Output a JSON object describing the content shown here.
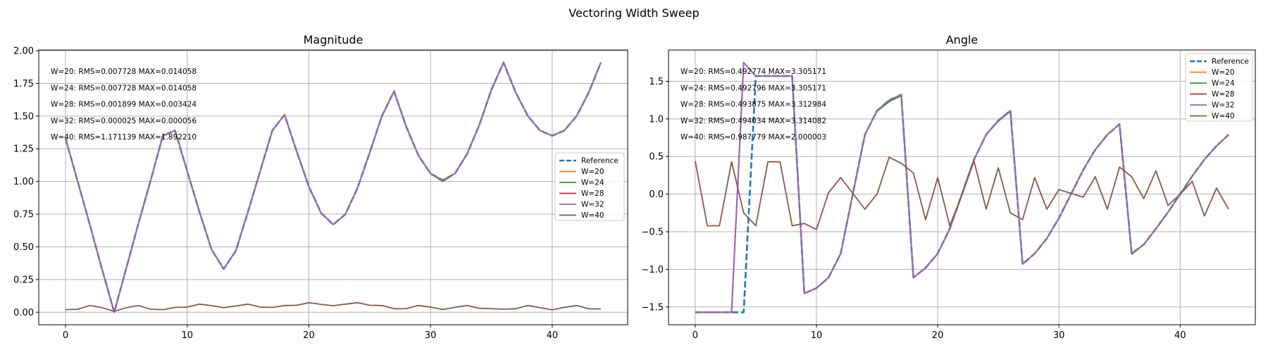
{
  "figure_title": "Vectoring Width Sweep",
  "colors": {
    "Reference": "#1f77b4",
    "W=20": "#ff7f0e",
    "W=24": "#2ca02c",
    "W=28": "#d62728",
    "W=32": "#9467bd",
    "W=40": "#8c564b"
  },
  "chart_data": [
    {
      "type": "line",
      "title": "Magnitude",
      "xlim": [
        -2.2,
        46.2
      ],
      "ylim": [
        -0.0955,
        2.0055
      ],
      "xticks": [
        "0",
        "10",
        "20",
        "30",
        "40"
      ],
      "yticks": [
        "0.00",
        "0.25",
        "0.50",
        "0.75",
        "1.00",
        "1.25",
        "1.50",
        "1.75",
        "2.00"
      ],
      "grid": true,
      "legend_position": "center-right",
      "x": [
        0,
        1,
        2,
        3,
        4,
        5,
        6,
        7,
        8,
        9,
        10,
        11,
        12,
        13,
        14,
        15,
        16,
        17,
        18,
        19,
        20,
        21,
        22,
        23,
        24,
        25,
        26,
        27,
        28,
        29,
        30,
        31,
        32,
        33,
        34,
        35,
        36,
        37,
        38,
        39,
        40,
        41,
        42,
        43,
        44
      ],
      "series": [
        {
          "name": "Reference",
          "style": "dashed",
          "values": [
            1.33,
            1.0,
            0.67,
            0.33,
            0.0,
            0.34,
            0.68,
            1.01,
            1.35,
            1.39,
            1.08,
            0.77,
            0.48,
            0.33,
            0.47,
            0.77,
            1.08,
            1.39,
            1.51,
            1.23,
            0.96,
            0.76,
            0.67,
            0.75,
            0.95,
            1.22,
            1.5,
            1.69,
            1.42,
            1.2,
            1.06,
            1.01,
            1.06,
            1.21,
            1.43,
            1.7,
            1.91,
            1.68,
            1.5,
            1.39,
            1.35,
            1.39,
            1.5,
            1.68,
            1.91
          ]
        },
        {
          "name": "W=20",
          "values": [
            1.33,
            1.0,
            0.67,
            0.33,
            0.0,
            0.34,
            0.68,
            1.01,
            1.35,
            1.39,
            1.08,
            0.77,
            0.48,
            0.33,
            0.47,
            0.77,
            1.08,
            1.39,
            1.51,
            1.23,
            0.96,
            0.76,
            0.67,
            0.75,
            0.95,
            1.22,
            1.5,
            1.69,
            1.42,
            1.2,
            1.06,
            1.0,
            1.06,
            1.21,
            1.43,
            1.7,
            1.91,
            1.68,
            1.5,
            1.39,
            1.35,
            1.39,
            1.5,
            1.68,
            1.91
          ]
        },
        {
          "name": "W=24",
          "values": [
            1.33,
            1.0,
            0.67,
            0.33,
            0.0,
            0.34,
            0.68,
            1.01,
            1.35,
            1.39,
            1.08,
            0.77,
            0.48,
            0.33,
            0.47,
            0.77,
            1.08,
            1.39,
            1.51,
            1.23,
            0.96,
            0.76,
            0.67,
            0.75,
            0.95,
            1.22,
            1.5,
            1.69,
            1.42,
            1.2,
            1.06,
            1.0,
            1.06,
            1.21,
            1.43,
            1.7,
            1.91,
            1.68,
            1.5,
            1.39,
            1.35,
            1.39,
            1.5,
            1.68,
            1.91
          ]
        },
        {
          "name": "W=28",
          "values": [
            1.33,
            1.0,
            0.67,
            0.33,
            0.0,
            0.34,
            0.68,
            1.01,
            1.35,
            1.39,
            1.08,
            0.77,
            0.48,
            0.33,
            0.47,
            0.77,
            1.08,
            1.39,
            1.51,
            1.23,
            0.96,
            0.76,
            0.67,
            0.75,
            0.95,
            1.22,
            1.5,
            1.69,
            1.42,
            1.2,
            1.06,
            1.01,
            1.06,
            1.21,
            1.43,
            1.7,
            1.91,
            1.68,
            1.5,
            1.39,
            1.35,
            1.39,
            1.5,
            1.68,
            1.91
          ]
        },
        {
          "name": "W=32",
          "values": [
            1.33,
            1.0,
            0.67,
            0.33,
            0.0,
            0.34,
            0.68,
            1.01,
            1.35,
            1.39,
            1.08,
            0.77,
            0.48,
            0.33,
            0.47,
            0.77,
            1.08,
            1.39,
            1.51,
            1.23,
            0.96,
            0.76,
            0.67,
            0.75,
            0.95,
            1.22,
            1.5,
            1.69,
            1.42,
            1.2,
            1.06,
            1.01,
            1.06,
            1.21,
            1.43,
            1.7,
            1.91,
            1.68,
            1.5,
            1.39,
            1.35,
            1.39,
            1.5,
            1.68,
            1.91
          ]
        },
        {
          "name": "W=40",
          "values": [
            0.02,
            0.023,
            0.051,
            0.035,
            0.007,
            0.035,
            0.051,
            0.023,
            0.02,
            0.037,
            0.039,
            0.062,
            0.05,
            0.035,
            0.048,
            0.062,
            0.039,
            0.037,
            0.051,
            0.053,
            0.073,
            0.06,
            0.05,
            0.062,
            0.073,
            0.053,
            0.051,
            0.027,
            0.028,
            0.051,
            0.039,
            0.021,
            0.037,
            0.051,
            0.03,
            0.028,
            0.023,
            0.027,
            0.051,
            0.035,
            0.018,
            0.037,
            0.051,
            0.027,
            0.025
          ]
        }
      ],
      "annotations": [
        "W=20: RMS=0.007728 MAX=0.014058",
        "W=24: RMS=0.007728 MAX=0.014058",
        "W=28: RMS=0.001899 MAX=0.003424",
        "W=32: RMS=0.000025 MAX=0.000056",
        "W=40: RMS=1.171139 MAX=1.892210"
      ]
    },
    {
      "type": "line",
      "title": "Angle",
      "xlim": [
        -2.2,
        46.2
      ],
      "ylim": [
        -1.736,
        1.916
      ],
      "xticks": [
        "0",
        "10",
        "20",
        "30",
        "40"
      ],
      "yticks": [
        "−1.5",
        "−1.0",
        "−0.5",
        "0.0",
        "0.5",
        "1.0",
        "1.5"
      ],
      "grid": true,
      "legend_position": "upper-right",
      "x": [
        0,
        1,
        2,
        3,
        4,
        5,
        6,
        7,
        8,
        9,
        10,
        11,
        12,
        13,
        14,
        15,
        16,
        17,
        18,
        19,
        20,
        21,
        22,
        23,
        24,
        25,
        26,
        27,
        28,
        29,
        30,
        31,
        32,
        33,
        34,
        35,
        36,
        37,
        38,
        39,
        40,
        41,
        42,
        43,
        44
      ],
      "series": [
        {
          "name": "Reference",
          "style": "dashed",
          "values": [
            -1.57,
            -1.57,
            -1.57,
            -1.57,
            -1.57,
            1.57,
            1.57,
            1.57,
            1.57,
            -1.32,
            -1.25,
            -1.11,
            -0.79,
            0.0,
            0.79,
            1.11,
            1.25,
            1.32,
            -1.11,
            -0.98,
            -0.79,
            -0.46,
            0.0,
            0.46,
            0.79,
            0.98,
            1.11,
            -0.93,
            -0.79,
            -0.59,
            -0.32,
            0.0,
            0.32,
            0.59,
            0.79,
            0.93,
            -0.79,
            -0.67,
            -0.46,
            -0.24,
            0.0,
            0.24,
            0.46,
            0.64,
            0.79
          ]
        },
        {
          "name": "W=20",
          "values": [
            -1.57,
            -1.57,
            -1.57,
            -1.57,
            1.75,
            1.57,
            1.57,
            1.57,
            1.57,
            -1.32,
            -1.25,
            -1.11,
            -0.79,
            0.0,
            0.79,
            1.1,
            1.23,
            1.31,
            -1.11,
            -0.98,
            -0.79,
            -0.46,
            0.0,
            0.46,
            0.79,
            0.97,
            1.1,
            -0.93,
            -0.79,
            -0.59,
            -0.32,
            0.0,
            0.32,
            0.59,
            0.79,
            0.93,
            -0.8,
            -0.67,
            -0.46,
            -0.24,
            0.0,
            0.24,
            0.46,
            0.64,
            0.79
          ]
        },
        {
          "name": "W=24",
          "values": [
            -1.57,
            -1.57,
            -1.57,
            -1.57,
            1.75,
            1.57,
            1.57,
            1.57,
            1.57,
            -1.32,
            -1.25,
            -1.11,
            -0.79,
            0.0,
            0.79,
            1.1,
            1.23,
            1.31,
            -1.11,
            -0.98,
            -0.79,
            -0.46,
            0.0,
            0.46,
            0.79,
            0.97,
            1.1,
            -0.93,
            -0.79,
            -0.59,
            -0.32,
            0.0,
            0.32,
            0.59,
            0.79,
            0.93,
            -0.8,
            -0.67,
            -0.46,
            -0.24,
            0.0,
            0.24,
            0.46,
            0.64,
            0.79
          ]
        },
        {
          "name": "W=28",
          "values": [
            -1.57,
            -1.57,
            -1.57,
            -1.57,
            1.75,
            1.57,
            1.57,
            1.57,
            1.57,
            -1.32,
            -1.25,
            -1.11,
            -0.79,
            0.0,
            0.79,
            1.11,
            1.25,
            1.32,
            -1.11,
            -0.98,
            -0.79,
            -0.46,
            0.0,
            0.46,
            0.79,
            0.98,
            1.11,
            -0.93,
            -0.79,
            -0.59,
            -0.32,
            0.0,
            0.32,
            0.59,
            0.79,
            0.93,
            -0.79,
            -0.67,
            -0.46,
            -0.24,
            0.0,
            0.24,
            0.46,
            0.64,
            0.79
          ]
        },
        {
          "name": "W=32",
          "values": [
            -1.57,
            -1.57,
            -1.57,
            -1.57,
            1.75,
            1.57,
            1.57,
            1.57,
            1.57,
            -1.32,
            -1.25,
            -1.11,
            -0.79,
            0.0,
            0.79,
            1.11,
            1.25,
            1.32,
            -1.11,
            -0.98,
            -0.79,
            -0.46,
            0.0,
            0.46,
            0.79,
            0.98,
            1.11,
            -0.93,
            -0.79,
            -0.59,
            -0.32,
            0.0,
            0.32,
            0.59,
            0.79,
            0.93,
            -0.79,
            -0.67,
            -0.46,
            -0.24,
            0.0,
            0.24,
            0.46,
            0.64,
            0.79
          ]
        },
        {
          "name": "W=40",
          "values": [
            0.44,
            -0.42,
            -0.42,
            0.43,
            -0.25,
            -0.42,
            0.43,
            0.43,
            -0.42,
            -0.39,
            -0.47,
            0.02,
            0.22,
            0.01,
            -0.2,
            0.0,
            0.49,
            0.41,
            0.28,
            -0.34,
            0.22,
            -0.42,
            -0.01,
            0.44,
            -0.2,
            0.35,
            -0.25,
            -0.34,
            0.22,
            -0.2,
            0.06,
            0.01,
            -0.04,
            0.23,
            -0.2,
            0.36,
            0.23,
            -0.06,
            0.31,
            -0.15,
            0.0,
            0.17,
            -0.29,
            0.08,
            -0.2
          ]
        }
      ],
      "annotations": [
        "W=20: RMS=0.492774 MAX=3.305171",
        "W=24: RMS=0.492796 MAX=3.305171",
        "W=28: RMS=0.493875 MAX=3.312984",
        "W=32: RMS=0.494034 MAX=3.314082",
        "W=40: RMS=0.987779 MAX=2.000003"
      ]
    }
  ]
}
